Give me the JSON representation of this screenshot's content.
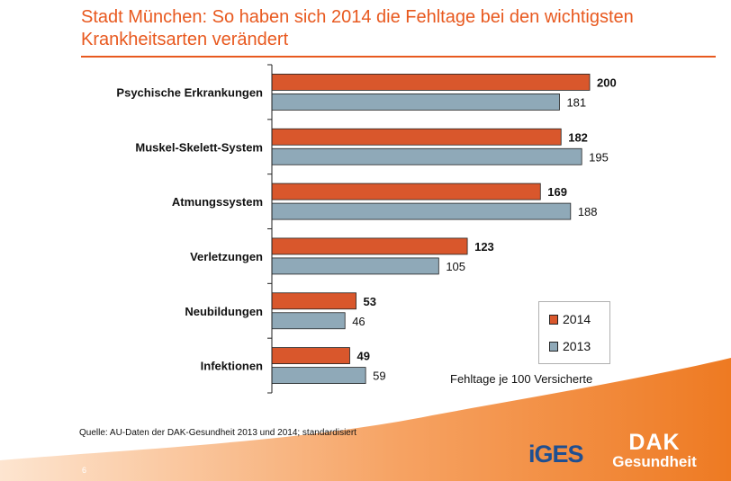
{
  "title": "Stadt München: So haben sich 2014 die Fehltage bei den wichtigsten Krankheitsarten verändert",
  "source": "Quelle: AU-Daten der DAK-Gesundheit 2013 und 2014; standardisiert",
  "page_number": "6",
  "logos": {
    "iges": "iGES",
    "dak_line1": "DAK",
    "dak_line2": "Gesundheit"
  },
  "colors": {
    "series_2014": "#d9572c",
    "series_2013": "#8fa9b8",
    "accent": "#e8591f"
  },
  "chart_data": {
    "type": "bar",
    "orientation": "horizontal",
    "title": "Stadt München: So haben sich 2014 die Fehltage bei den wichtigsten Krankheitsarten verändert",
    "note": "Fehltage je 100 Versicherte",
    "xlabel": "Fehltage je 100 Versicherte",
    "ylabel": "",
    "xlim": [
      0,
      200
    ],
    "grid": false,
    "legend_position": "bottom-right",
    "categories": [
      "Psychische Erkrankungen",
      "Muskel-Skelett-System",
      "Atmungssystem",
      "Verletzungen",
      "Neubildungen",
      "Infektionen"
    ],
    "series": [
      {
        "name": "2014",
        "color": "#d9572c",
        "values": [
          200,
          182,
          169,
          123,
          53,
          49
        ]
      },
      {
        "name": "2013",
        "color": "#8fa9b8",
        "values": [
          181,
          195,
          188,
          105,
          46,
          59
        ]
      }
    ]
  }
}
